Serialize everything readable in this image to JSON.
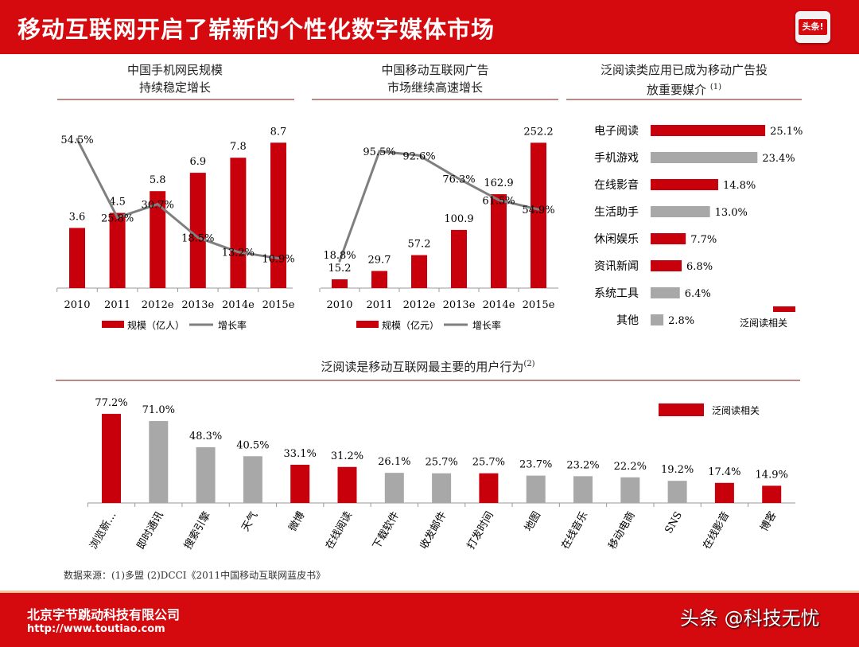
{
  "header": {
    "title": "移动互联网开启了崭新的个性化数字媒体市场",
    "logo_text": "头条!"
  },
  "colors": {
    "red": "#c8000b",
    "gray": "#a8a8a8",
    "line": "#7f7f7f"
  },
  "chart_data": [
    {
      "type": "bar+line",
      "title_lines": [
        "中国手机网民规模",
        "持续稳定增长"
      ],
      "categories": [
        "2010",
        "2011",
        "2012e",
        "2013e",
        "2014e",
        "2015e"
      ],
      "series": [
        {
          "name": "规模（亿人）",
          "type": "bar",
          "values": [
            3.6,
            4.5,
            5.8,
            6.9,
            7.8,
            8.7
          ],
          "labels": [
            "3.6",
            "4.5",
            "5.8",
            "6.9",
            "7.8",
            "8.7"
          ]
        },
        {
          "name": "增长率",
          "type": "line",
          "values": [
            54.5,
            25.8,
            30.7,
            18.5,
            13.2,
            10.9
          ],
          "labels": [
            "54.5%",
            "25.8%",
            "30.7%",
            "18.5%",
            "13.2%",
            "10.9%"
          ]
        }
      ],
      "legend_placement": "bottom"
    },
    {
      "type": "bar+line",
      "title_lines": [
        "中国移动互联网广告",
        "市场继续高速增长"
      ],
      "categories": [
        "2010",
        "2011",
        "2012e",
        "2013e",
        "2014e",
        "2015e"
      ],
      "series": [
        {
          "name": "规模（亿元）",
          "type": "bar",
          "values": [
            15.2,
            29.7,
            57.2,
            100.9,
            162.9,
            252.2
          ],
          "labels": [
            "15.2",
            "29.7",
            "57.2",
            "100.9",
            "162.9",
            "252.2"
          ]
        },
        {
          "name": "增长率",
          "type": "line",
          "values": [
            18.8,
            95.5,
            92.6,
            76.3,
            61.5,
            54.9
          ],
          "labels": [
            "18.8%",
            "95.5%",
            "92.6%",
            "76.3%",
            "61.5%",
            "54.9%"
          ]
        }
      ],
      "legend_placement": "bottom"
    },
    {
      "type": "bar",
      "orientation": "horizontal",
      "title_lines": [
        "泛阅读类应用已成为移动广告投",
        "放重要媒介"
      ],
      "title_note": "(1)",
      "categories": [
        "电子阅读",
        "手机游戏",
        "在线影音",
        "生活助手",
        "休闲娱乐",
        "资讯新闻",
        "系统工具",
        "其他"
      ],
      "values": [
        25.1,
        23.4,
        14.8,
        13.0,
        7.7,
        6.8,
        6.4,
        2.8
      ],
      "labels": [
        "25.1%",
        "23.4%",
        "14.8%",
        "13.0%",
        "7.7%",
        "6.8%",
        "6.4%",
        "2.8%"
      ],
      "highlight": [
        true,
        false,
        true,
        false,
        true,
        true,
        false,
        false
      ],
      "legend": "泛阅读相关",
      "legend_placement": "bottom-right"
    },
    {
      "type": "bar",
      "title": "泛阅读是移动互联网最主要的用户行为",
      "title_note": "(2)",
      "categories": [
        "浏览新…",
        "即时通讯",
        "搜索引擎",
        "天气",
        "微博",
        "在线阅读",
        "下载软件",
        "收发邮件",
        "打发时间",
        "地图",
        "在线音乐",
        "移动电商",
        "SNS",
        "在线影音",
        "博客"
      ],
      "values": [
        77.2,
        71.0,
        48.3,
        40.5,
        33.1,
        31.2,
        26.1,
        25.7,
        25.7,
        23.7,
        23.2,
        22.2,
        19.2,
        17.4,
        14.9
      ],
      "labels": [
        "77.2%",
        "71.0%",
        "48.3%",
        "40.5%",
        "33.1%",
        "31.2%",
        "26.1%",
        "25.7%",
        "25.7%",
        "23.7%",
        "23.2%",
        "22.2%",
        "19.2%",
        "17.4%",
        "14.9%"
      ],
      "highlight": [
        true,
        false,
        false,
        false,
        true,
        true,
        false,
        false,
        true,
        false,
        false,
        false,
        false,
        true,
        true
      ],
      "legend": "泛阅读相关",
      "legend_placement": "top-right"
    }
  ],
  "source": "数据来源：(1)多盟 (2)DCCI《2011中国移动互联网蓝皮书》",
  "footer": {
    "company": "北京字节跳动科技有限公司",
    "url": "http://www.toutiao.com",
    "brand": "头条 @科技无忧"
  }
}
